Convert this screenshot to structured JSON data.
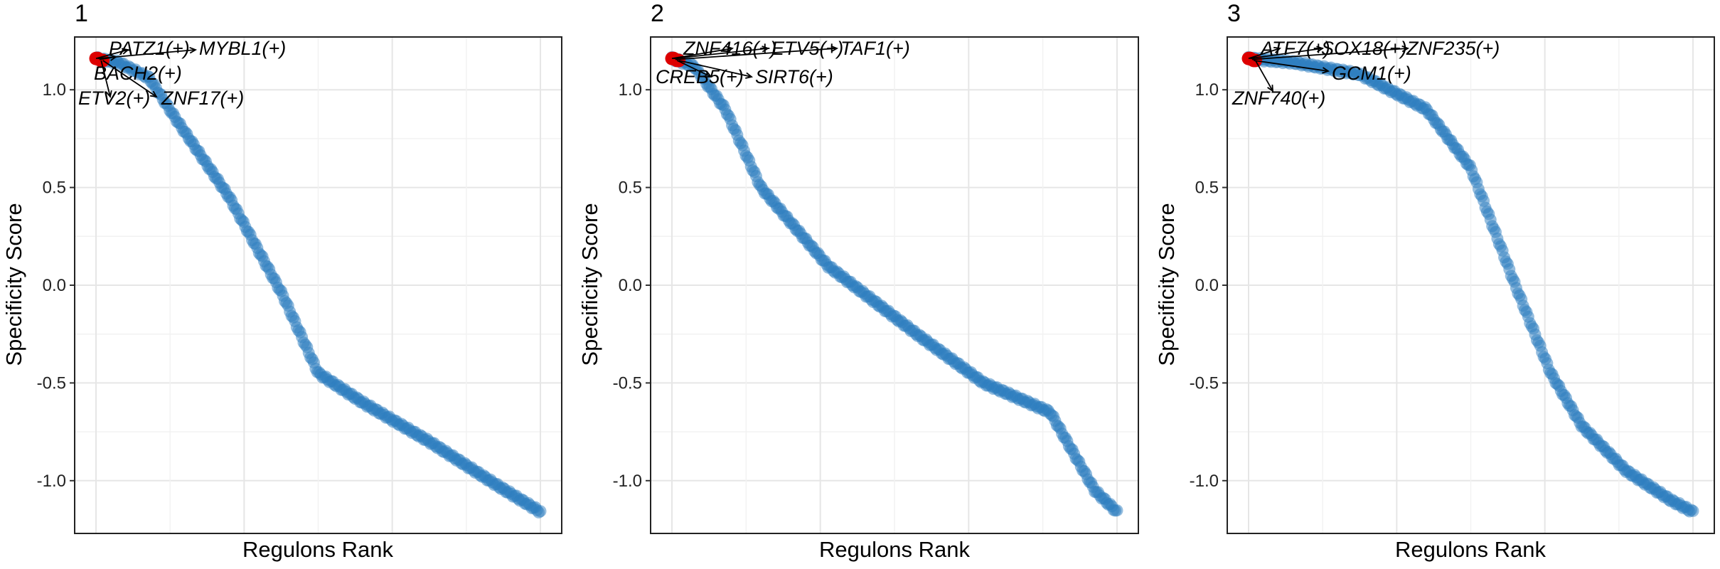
{
  "figure": {
    "panels": [
      {
        "tag": "1",
        "xlabel": "Regulons Rank",
        "ylabel": "Specificity Score"
      },
      {
        "tag": "2",
        "xlabel": "Regulons Rank",
        "ylabel": "Specificity Score"
      },
      {
        "tag": "3",
        "xlabel": "Regulons Rank",
        "ylabel": "Specificity Score"
      }
    ]
  },
  "chart_data": [
    {
      "type": "scatter",
      "panel": "1",
      "xlabel": "Regulons Rank",
      "ylabel": "Specificity Score",
      "ylim": [
        -1.27,
        1.27
      ],
      "yticks": [
        1.0,
        0.5,
        0.0,
        -0.5,
        -1.0
      ],
      "ytick_labels": [
        "1.0",
        "0.5",
        "0.0",
        "-0.5",
        "-1.0"
      ],
      "x_ticks_shown": false,
      "grid": true,
      "n_points": 260,
      "point_color": "#2E7EBF",
      "highlight_color": "#DD0000",
      "curve": [
        [
          0,
          1.16
        ],
        [
          0.05,
          1.14
        ],
        [
          0.12,
          1.06
        ],
        [
          0.18,
          0.85
        ],
        [
          0.3,
          0.45
        ],
        [
          0.42,
          -0.05
        ],
        [
          0.5,
          -0.45
        ],
        [
          0.6,
          -0.6
        ],
        [
          0.75,
          -0.8
        ],
        [
          0.9,
          -1.02
        ],
        [
          1,
          -1.16
        ]
      ],
      "highlights": [
        {
          "label": "PATZ1(+)",
          "rank": 0,
          "score": 1.16
        },
        {
          "label": "MYBL1(+)",
          "rank": 1,
          "score": 1.16
        },
        {
          "label": "BACH2(+)",
          "rank": 2,
          "score": 1.155
        },
        {
          "label": "ETV2(+)",
          "rank": 3,
          "score": 1.15
        },
        {
          "label": "ZNF17(+)",
          "rank": 4,
          "score": 1.15
        }
      ]
    },
    {
      "type": "scatter",
      "panel": "2",
      "xlabel": "Regulons Rank",
      "ylabel": "Specificity Score",
      "ylim": [
        -1.27,
        1.27
      ],
      "yticks": [
        1.0,
        0.5,
        0.0,
        -0.5,
        -1.0
      ],
      "ytick_labels": [
        "1.0",
        "0.5",
        "0.0",
        "-0.5",
        "-1.0"
      ],
      "x_ticks_shown": false,
      "grid": true,
      "n_points": 260,
      "point_color": "#2E7EBF",
      "highlight_color": "#DD0000",
      "curve": [
        [
          0,
          1.16
        ],
        [
          0.05,
          1.12
        ],
        [
          0.12,
          0.9
        ],
        [
          0.2,
          0.5
        ],
        [
          0.35,
          0.1
        ],
        [
          0.55,
          -0.25
        ],
        [
          0.7,
          -0.5
        ],
        [
          0.85,
          -0.65
        ],
        [
          0.9,
          -0.85
        ],
        [
          0.95,
          -1.05
        ],
        [
          1,
          -1.16
        ]
      ],
      "highlights": [
        {
          "label": "ZNF416(+)",
          "rank": 0,
          "score": 1.16
        },
        {
          "label": "ETV5(+)",
          "rank": 1,
          "score": 1.16
        },
        {
          "label": "TAF1(+)",
          "rank": 2,
          "score": 1.155
        },
        {
          "label": "CREB5(+)",
          "rank": 3,
          "score": 1.15
        },
        {
          "label": "SIRT6(+)",
          "rank": 4,
          "score": 1.15
        }
      ]
    },
    {
      "type": "scatter",
      "panel": "3",
      "xlabel": "Regulons Rank",
      "ylabel": "Specificity Score",
      "ylim": [
        -1.27,
        1.27
      ],
      "yticks": [
        1.0,
        0.5,
        0.0,
        -0.5,
        -1.0
      ],
      "ytick_labels": [
        "1.0",
        "0.5",
        "0.0",
        "-0.5",
        "-1.0"
      ],
      "x_ticks_shown": false,
      "grid": true,
      "n_points": 260,
      "point_color": "#2E7EBF",
      "highlight_color": "#DD0000",
      "curve": [
        [
          0,
          1.16
        ],
        [
          0.1,
          1.14
        ],
        [
          0.25,
          1.08
        ],
        [
          0.4,
          0.9
        ],
        [
          0.5,
          0.6
        ],
        [
          0.6,
          0.0
        ],
        [
          0.68,
          -0.45
        ],
        [
          0.75,
          -0.72
        ],
        [
          0.85,
          -0.95
        ],
        [
          0.95,
          -1.1
        ],
        [
          1,
          -1.16
        ]
      ],
      "highlights": [
        {
          "label": "ATF7(+)",
          "rank": 0,
          "score": 1.16
        },
        {
          "label": "SOX18(+)",
          "rank": 1,
          "score": 1.16
        },
        {
          "label": "ZNF235(+)",
          "rank": 2,
          "score": 1.155
        },
        {
          "label": "GCM1(+)",
          "rank": 3,
          "score": 1.15
        },
        {
          "label": "ZNF740(+)",
          "rank": 4,
          "score": 1.15
        }
      ]
    }
  ]
}
